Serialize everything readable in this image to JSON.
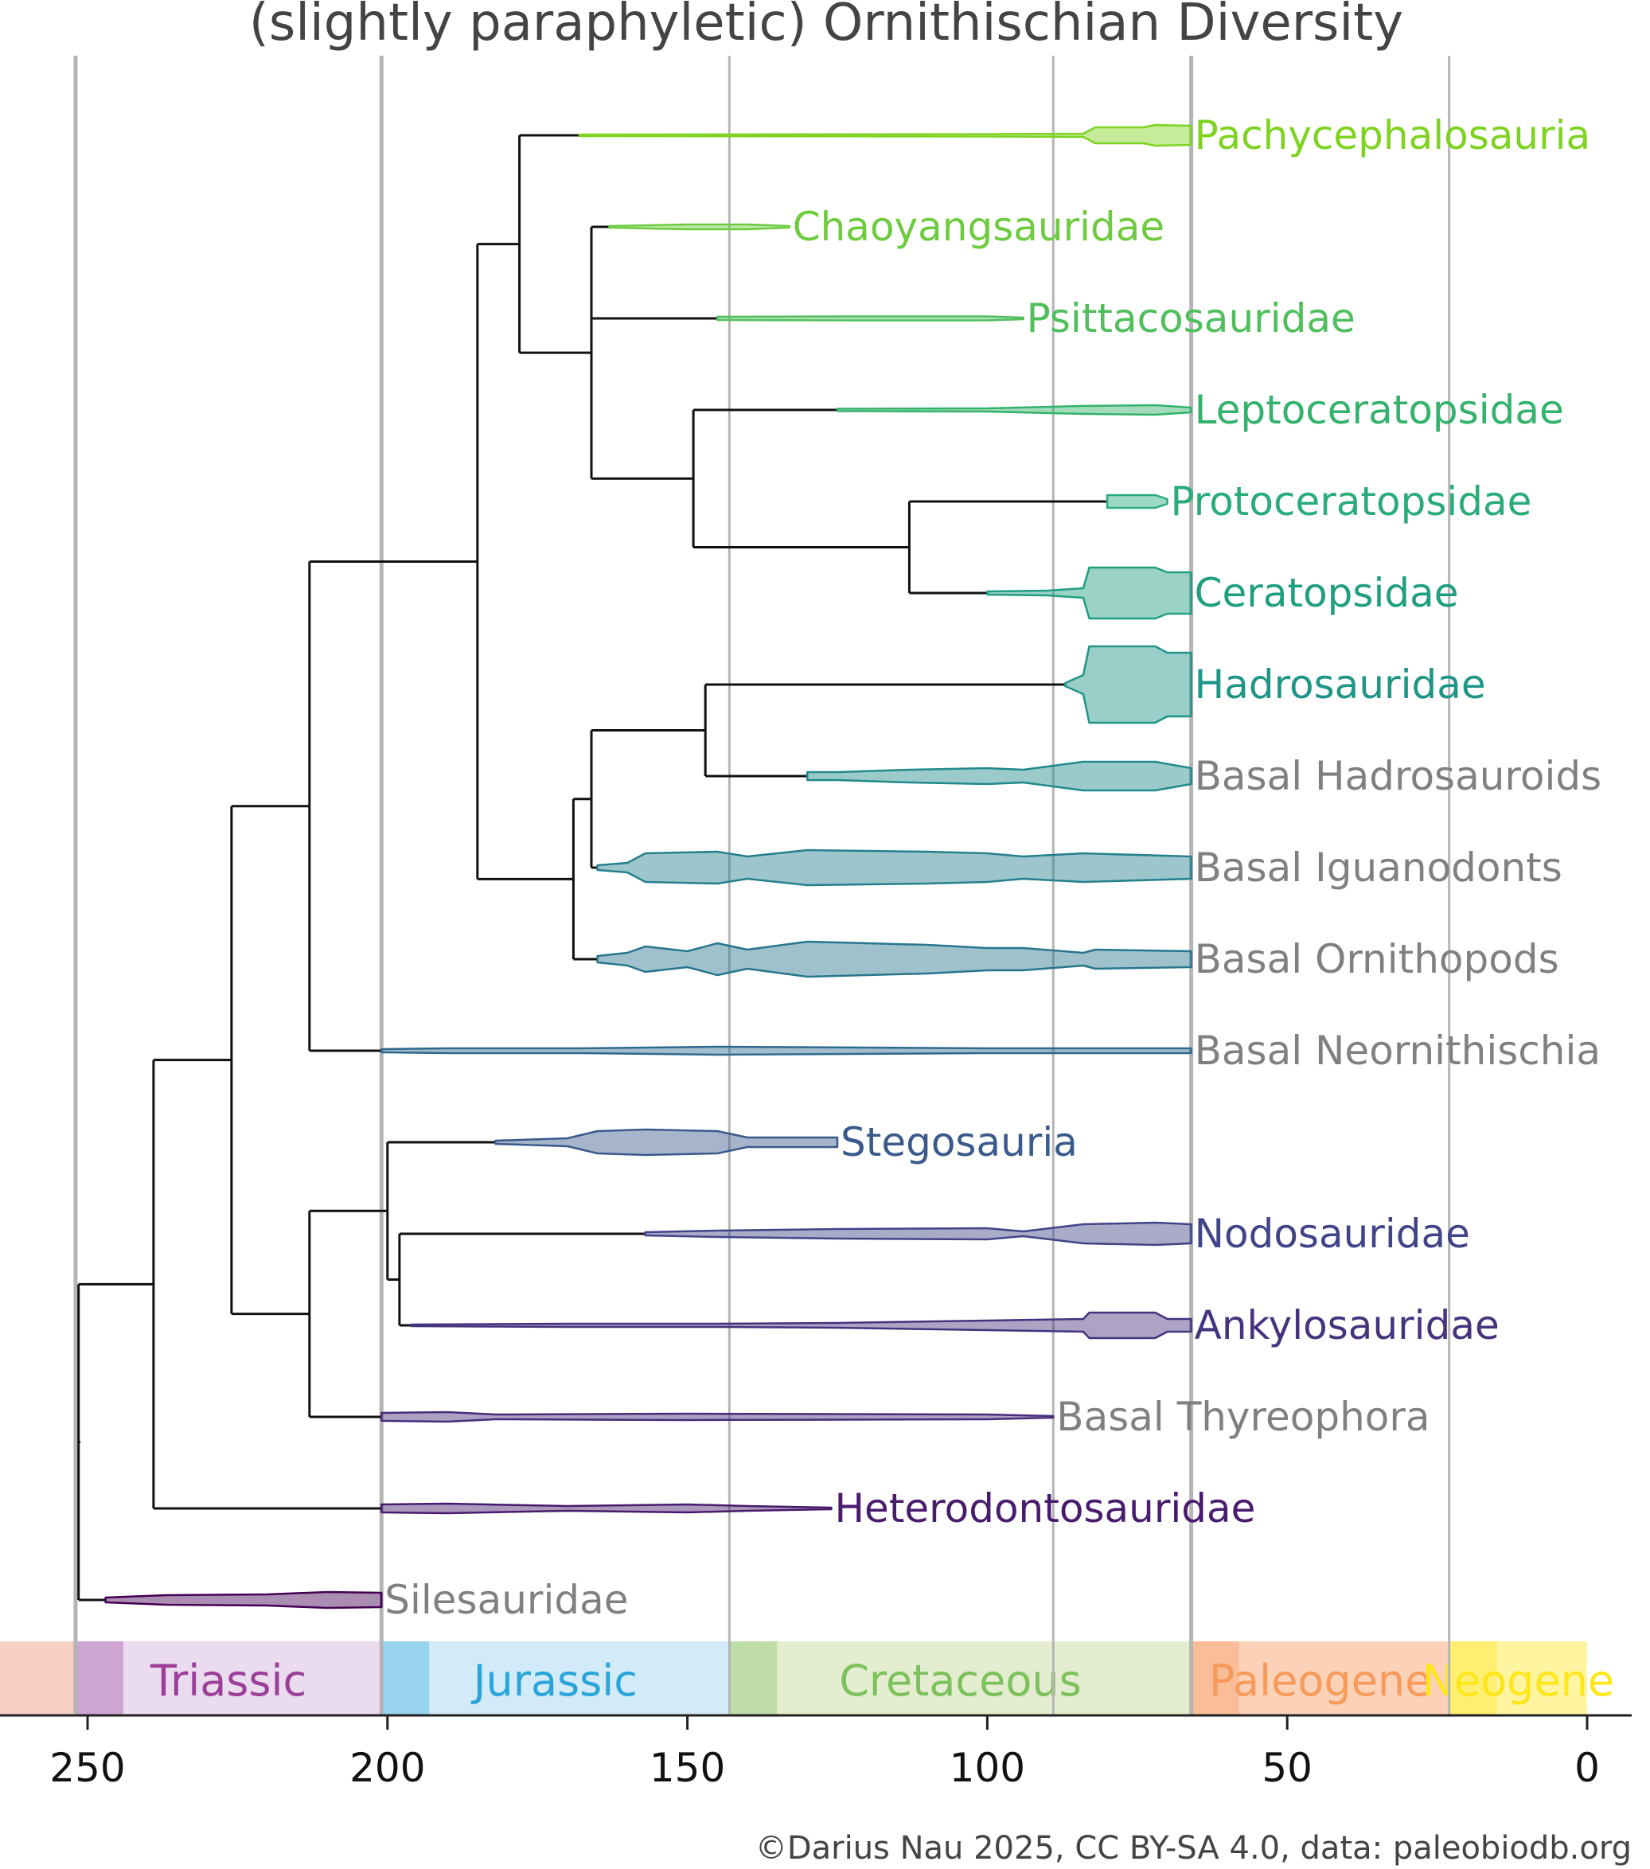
{
  "chart_data": {
    "type": "phylogenetic-diversity",
    "title": "(slightly paraphyletic) Ornithischian Diversity",
    "credit": "©Darius Nau 2025, CC BY-SA 4.0, data: paleobiodb.org",
    "x_axis": {
      "label": "",
      "ticks": [
        "250",
        "200",
        "150",
        "100",
        "50",
        "0"
      ],
      "tick_values": [
        250,
        200,
        150,
        100,
        50,
        0
      ],
      "range": [
        266,
        -8
      ],
      "units": "Ma"
    },
    "boundaries": [
      {
        "age": 252,
        "major": true
      },
      {
        "age": 201,
        "major": true
      },
      {
        "age": 143,
        "major": false
      },
      {
        "age": 89,
        "major": false
      },
      {
        "age": 66,
        "major": true
      },
      {
        "age": 23,
        "major": false
      }
    ],
    "periods": [
      {
        "name": "Triassic",
        "start": 252,
        "end": 201,
        "color": "#9b3e99",
        "bg": "#eadcee"
      },
      {
        "name": "Jurassic",
        "start": 201,
        "end": 143,
        "color": "#2aa5d9",
        "bg": "#d3ebf8"
      },
      {
        "name": "Cretaceous",
        "start": 143,
        "end": 66,
        "color": "#7cc15c",
        "bg": "#e4edcf"
      },
      {
        "name": "Paleogene",
        "start": 66,
        "end": 23,
        "color": "#f79a5a",
        "bg": "#fbd2b8"
      },
      {
        "name": "Neogene",
        "start": 23,
        "end": 0,
        "color": "#ffe619",
        "bg": "#fff4a0"
      }
    ],
    "taxa": [
      {
        "name": "Pachycephalosauria",
        "color": "#7ed321",
        "basal": false,
        "start": 168,
        "end": 66
      },
      {
        "name": "Chaoyangsauridae",
        "color": "#6ecb3f",
        "basal": false,
        "start": 163,
        "end": 133
      },
      {
        "name": "Psittacosauridae",
        "color": "#4fbf5c",
        "basal": false,
        "start": 145,
        "end": 94
      },
      {
        "name": "Leptoceratopsidae",
        "color": "#33b26b",
        "basal": false,
        "start": 125,
        "end": 66
      },
      {
        "name": "Protoceratopsidae",
        "color": "#29ac79",
        "basal": false,
        "start": 80,
        "end": 70
      },
      {
        "name": "Ceratopsidae",
        "color": "#1f9e80",
        "basal": false,
        "start": 100,
        "end": 66
      },
      {
        "name": "Hadrosauridae",
        "color": "#1f9588",
        "basal": false,
        "start": 87,
        "end": 66
      },
      {
        "name": "Basal Hadrosauroids",
        "color": "#218a8c",
        "basal": true,
        "start": 130,
        "end": 66
      },
      {
        "name": "Basal Iguanodonts",
        "color": "#25808e",
        "basal": true,
        "start": 165,
        "end": 66
      },
      {
        "name": "Basal Ornithopods",
        "color": "#28758e",
        "basal": true,
        "start": 165,
        "end": 66
      },
      {
        "name": "Basal Neornithischia",
        "color": "#2f6a8e",
        "basal": true,
        "start": 201,
        "end": 66
      },
      {
        "name": "Stegosauria",
        "color": "#3a5a8c",
        "basal": false,
        "start": 182,
        "end": 125
      },
      {
        "name": "Nodosauridae",
        "color": "#414487",
        "basal": false,
        "start": 157,
        "end": 66
      },
      {
        "name": "Ankylosauridae",
        "color": "#46337e",
        "basal": false,
        "start": 196,
        "end": 66
      },
      {
        "name": "Basal Thyreophora",
        "color": "#472d7b",
        "basal": true,
        "start": 201,
        "end": 89
      },
      {
        "name": "Heterodontosauridae",
        "color": "#481b6d",
        "basal": false,
        "start": 201,
        "end": 126
      },
      {
        "name": "Silesauridae",
        "color": "#440154",
        "basal": true,
        "start": 247,
        "end": 201
      }
    ]
  }
}
